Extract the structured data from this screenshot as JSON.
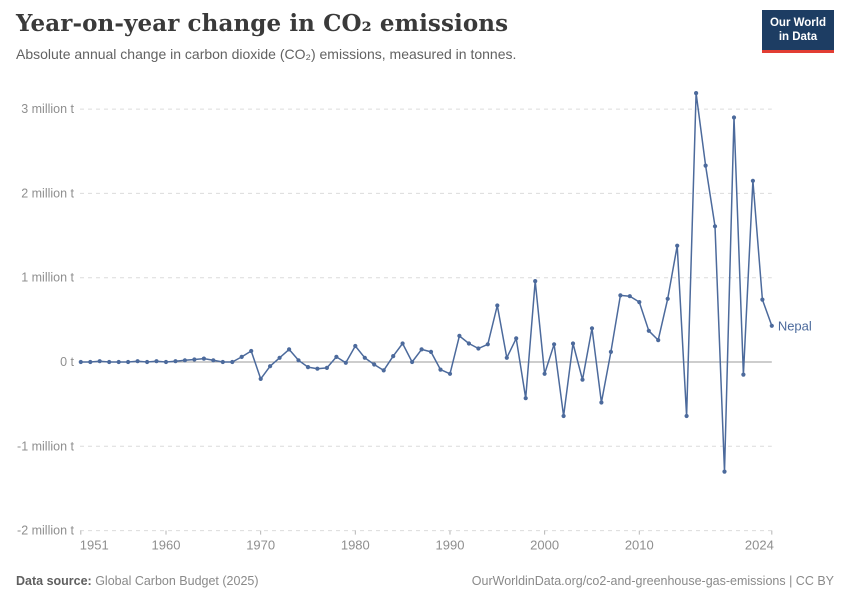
{
  "header": {
    "title": "Year-on-year change in CO₂ emissions",
    "subtitle": "Absolute annual change in carbon dioxide (CO₂) emissions, measured in tonnes."
  },
  "logo": {
    "line1": "Our World",
    "line2": "in Data",
    "bg_color": "#1d3d63",
    "accent_color": "#e23d33"
  },
  "chart_data": {
    "type": "line",
    "entity": "Nepal",
    "unit": "million t",
    "line_color": "#4C6A9C",
    "x": [
      1951,
      1952,
      1953,
      1954,
      1955,
      1956,
      1957,
      1958,
      1959,
      1960,
      1961,
      1962,
      1963,
      1964,
      1965,
      1966,
      1967,
      1968,
      1969,
      1970,
      1971,
      1972,
      1973,
      1974,
      1975,
      1976,
      1977,
      1978,
      1979,
      1980,
      1981,
      1982,
      1983,
      1984,
      1985,
      1986,
      1987,
      1988,
      1989,
      1990,
      1991,
      1992,
      1993,
      1994,
      1995,
      1996,
      1997,
      1998,
      1999,
      2000,
      2001,
      2002,
      2003,
      2004,
      2005,
      2006,
      2007,
      2008,
      2009,
      2010,
      2011,
      2012,
      2013,
      2014,
      2015,
      2016,
      2017,
      2018,
      2019,
      2020,
      2021,
      2022,
      2023,
      2024
    ],
    "values": [
      0.0,
      0.0,
      0.01,
      0.0,
      0.0,
      0.0,
      0.01,
      0.0,
      0.01,
      0.0,
      0.01,
      0.02,
      0.03,
      0.04,
      0.02,
      0.0,
      0.0,
      0.06,
      0.13,
      -0.2,
      -0.05,
      0.05,
      0.15,
      0.02,
      -0.06,
      -0.08,
      -0.07,
      0.06,
      -0.01,
      0.19,
      0.05,
      -0.03,
      -0.1,
      0.07,
      0.22,
      0.0,
      0.15,
      0.12,
      -0.09,
      -0.14,
      0.31,
      0.22,
      0.16,
      0.21,
      0.67,
      0.05,
      0.28,
      -0.43,
      0.96,
      -0.14,
      0.21,
      -0.64,
      0.22,
      -0.21,
      0.4,
      -0.48,
      0.12,
      0.79,
      0.78,
      0.71,
      0.37,
      0.26,
      0.75,
      1.38,
      -0.64,
      3.19,
      2.33,
      1.61,
      -1.3,
      2.9,
      -0.15,
      2.15,
      0.74,
      0.43
    ],
    "y_ticks": [
      {
        "v": 3,
        "label": "3 million t"
      },
      {
        "v": 2,
        "label": "2 million t"
      },
      {
        "v": 1,
        "label": "1 million t"
      },
      {
        "v": 0,
        "label": "0 t"
      },
      {
        "v": -1,
        "label": "-1 million t"
      },
      {
        "v": -2,
        "label": "-2 million t"
      }
    ],
    "x_ticks": [
      1951,
      1960,
      1970,
      1980,
      1990,
      2000,
      2010,
      2024
    ],
    "ylim": [
      -2,
      3.3
    ],
    "xlim": [
      1951,
      2024
    ],
    "grid": "dashed-horizontal",
    "series_label_color": "#4C6A9C",
    "grid_color": "#dcdcdc",
    "zero_line_color": "#9b9b9b",
    "tick_label_color": "#8f8f8f"
  },
  "footer": {
    "source_label": "Data source:",
    "source_text": " Global Carbon Budget (2025)",
    "link_text": "OurWorldinData.org/co2-and-greenhouse-gas-emissions | CC BY"
  }
}
